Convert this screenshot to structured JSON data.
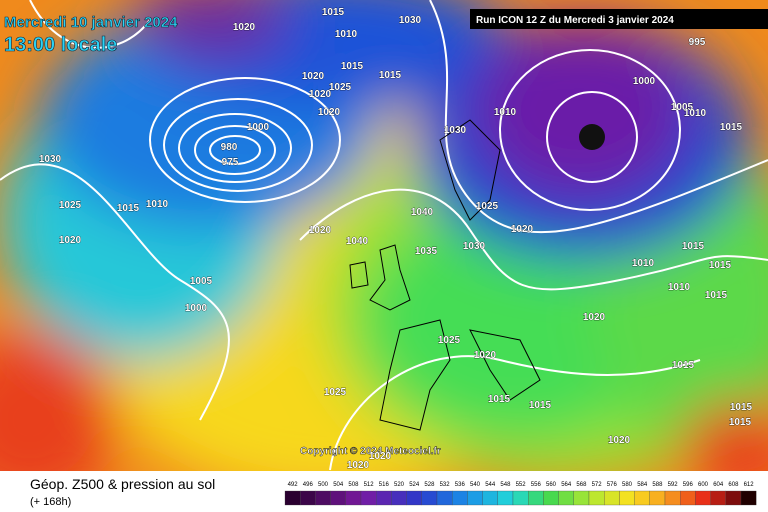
{
  "header": {
    "date": "Mercredi 10 janvier 2024",
    "time": "13:00 locale",
    "run": "Run ICON 12 Z du Mercredi 3 janvier 2024"
  },
  "map": {
    "copyright": "Copyright © 2024 Meteociel.fr",
    "isobar_labels": [
      "1020",
      "1015",
      "1030",
      "1010",
      "1015",
      "1015",
      "1020",
      "1020",
      "1025",
      "1020",
      "1000",
      "1000",
      "1010",
      "1005",
      "1010",
      "1015",
      "995",
      "975",
      "980",
      "1030",
      "1030",
      "1025",
      "1015",
      "1010",
      "1020",
      "1020",
      "1040",
      "1025",
      "1020",
      "1040",
      "1035",
      "1030",
      "1010",
      "1015",
      "1015",
      "1010",
      "1015",
      "1005",
      "1000",
      "1020",
      "1025",
      "1020",
      "1015",
      "1025",
      "1015",
      "1015",
      "1015",
      "1015",
      "1020",
      "1020",
      "1020"
    ]
  },
  "legend": {
    "title": "Géop. Z500 & pression au sol",
    "subtitle": "(+ 168h)",
    "scale": [
      492,
      496,
      500,
      504,
      508,
      512,
      516,
      520,
      524,
      528,
      532,
      536,
      540,
      544,
      548,
      552,
      556,
      560,
      564,
      568,
      572,
      576,
      580,
      584,
      588,
      592,
      596,
      600,
      604,
      608,
      612
    ]
  }
}
